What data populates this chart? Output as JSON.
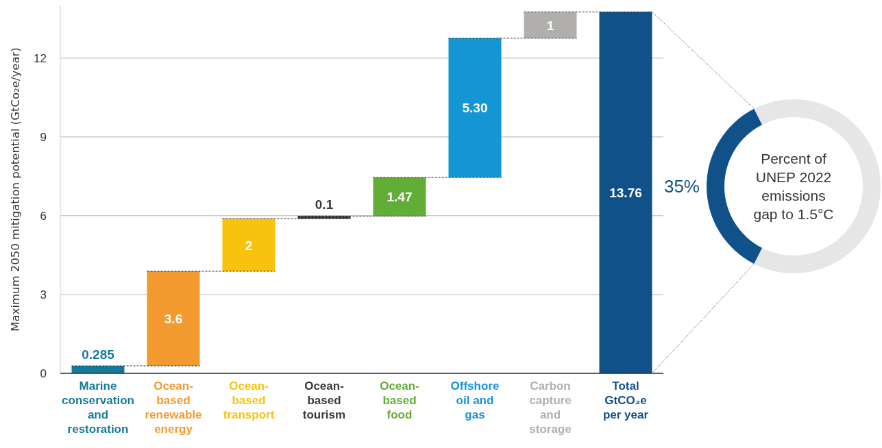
{
  "chart_data": [
    {
      "type": "bar",
      "ylabel": "Maximum 2050 mitigation potential (GtCo₂e/year)",
      "categories": [
        "Marine conservation and restoration",
        "Ocean-based renewable energy",
        "Ocean-based transport",
        "Ocean-based tourism",
        "Ocean-based food",
        "Offshore oil and gas",
        "Carbon capture and storage",
        "Total GtCO₂e per year"
      ],
      "values": [
        0.285,
        3.6,
        2,
        0.1,
        1.47,
        5.3,
        1,
        13.76
      ],
      "base": [
        0,
        0.285,
        3.885,
        5.885,
        5.985,
        7.455,
        12.755,
        0
      ],
      "colors": [
        "#157a9a",
        "#f39a2e",
        "#f9c20e",
        "#3a3a3a",
        "#62ad35",
        "#1496d4",
        "#b0afad",
        "#115189"
      ],
      "value_labels": [
        "0.285",
        "3.6",
        "2",
        "0.1",
        "1.47",
        "5.30",
        "1",
        "13.76"
      ],
      "ref_lines": [
        {
          "axis": "y",
          "value": 0.285,
          "color": "#222222",
          "line_style": "dashed"
        },
        {
          "axis": "y",
          "value": 3.885,
          "color": "#222222",
          "line_style": "dashed"
        },
        {
          "axis": "y",
          "value": 5.885,
          "color": "#222222",
          "line_style": "dashed"
        },
        {
          "axis": "y",
          "value": 5.985,
          "color": "#222222",
          "line_style": "dashed"
        },
        {
          "axis": "y",
          "value": 7.455,
          "color": "#222222",
          "line_style": "dashed"
        },
        {
          "axis": "y",
          "value": 12.755,
          "color": "#222222",
          "line_style": "dashed"
        },
        {
          "axis": "y",
          "value": 13.755,
          "color": "#222222",
          "line_style": "dashed"
        }
      ],
      "ylim": [
        0,
        14
      ],
      "yticks": [
        0,
        3,
        6,
        9,
        12
      ],
      "grid": "y"
    },
    {
      "type": "donut",
      "title": "Percent of UNEP 2022 emissions gap to 1.5°C",
      "categories": [
        null,
        null
      ],
      "values": [
        35,
        65
      ],
      "colors": [
        "#115189",
        "#e6e6e6"
      ],
      "value_labels": [
        "35%",
        null
      ]
    }
  ]
}
